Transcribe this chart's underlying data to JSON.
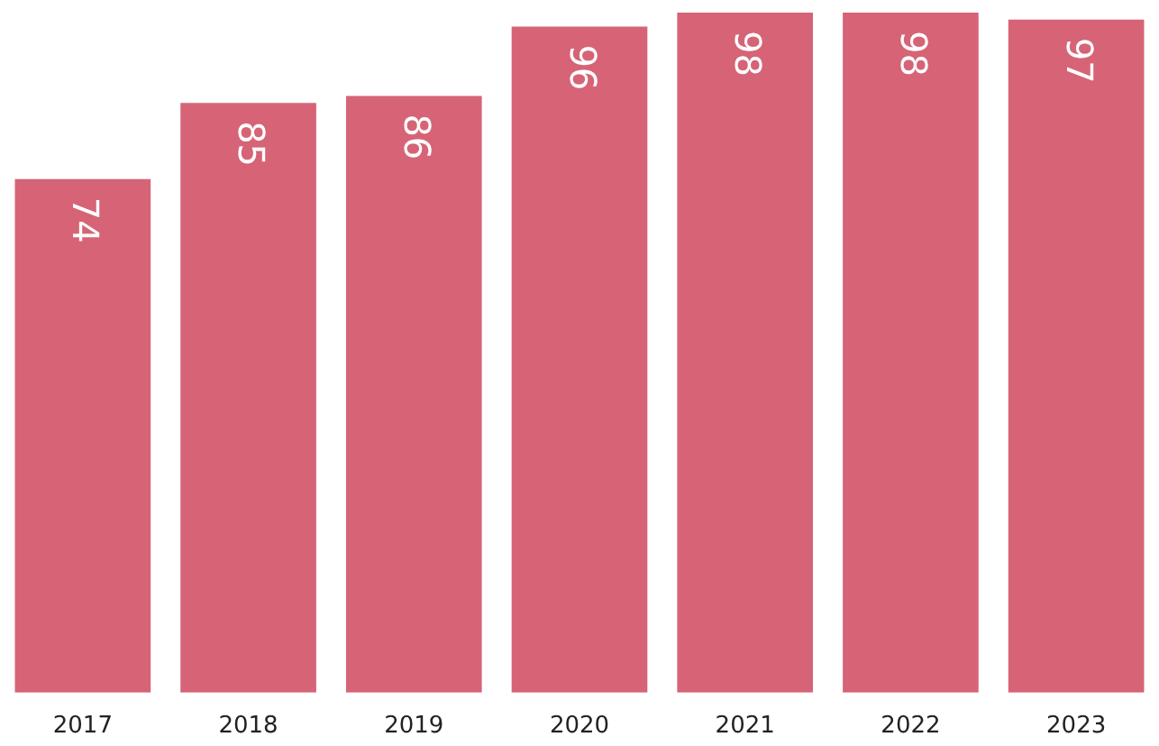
{
  "chart_data": {
    "type": "bar",
    "categories": [
      "2017",
      "2018",
      "2019",
      "2020",
      "2021",
      "2022",
      "2023"
    ],
    "values": [
      74,
      85,
      86,
      96,
      98,
      98,
      97
    ],
    "color": "#d66476",
    "data_labels": true
  }
}
